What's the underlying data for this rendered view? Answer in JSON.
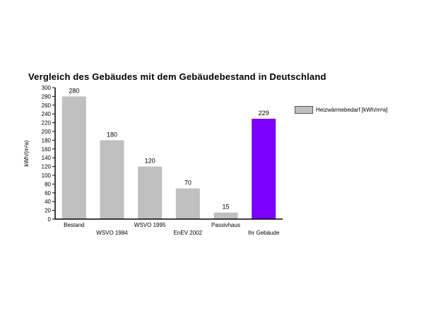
{
  "chart_data": {
    "type": "bar",
    "title": "Vergleich des Gebäudes mit dem Gebäudebestand in Deutschland",
    "ylabel": "kWh/(m²a)",
    "xlabel": "",
    "ylim": [
      0,
      300
    ],
    "ytick_step": 20,
    "categories": [
      "Bestand",
      "WSVO 1984",
      "WSVO 1995",
      "EnEV 2002",
      "Passivhaus",
      "Ihr Gebäude"
    ],
    "series": [
      {
        "name": "Heizwärmebedarf [kWh/m²a]",
        "values": [
          280,
          180,
          120,
          70,
          15,
          229
        ],
        "color": "#c0c0c0",
        "highlight_color": "#7a00ff",
        "highlight_index": 5
      }
    ],
    "legend_position": "right",
    "grid": false
  }
}
